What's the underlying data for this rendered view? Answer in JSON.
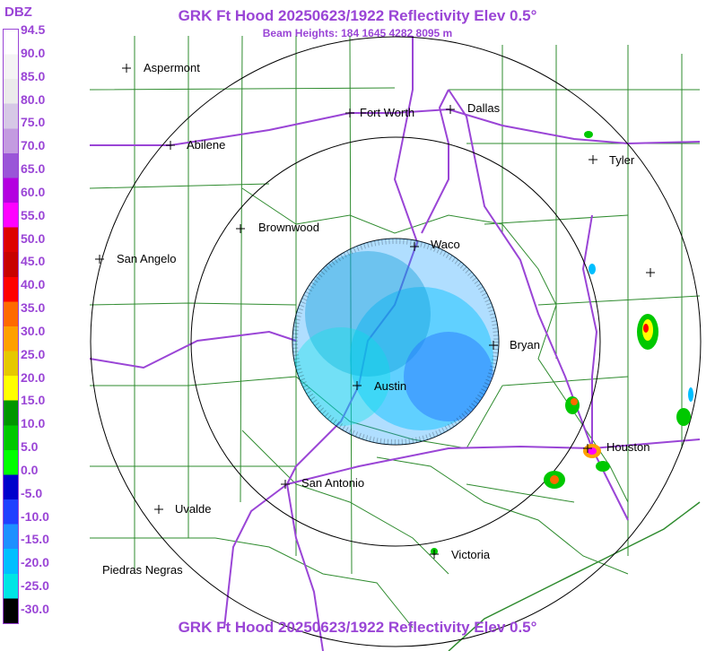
{
  "header": {
    "title": "GRK Ft Hood 20250623/1922 Reflectivity Elev 0.5°",
    "subtitle": "Beam Heights: 184 1645 4282 8095 m",
    "footer_title": "GRK Ft Hood 20250623/1922 Reflectivity Elev 0.5°"
  },
  "legend": {
    "unit": "DBZ",
    "ticks": [
      "94.5",
      "90.0",
      "85.0",
      "80.0",
      "75.0",
      "70.0",
      "65.0",
      "60.0",
      "55.0",
      "50.0",
      "45.0",
      "40.0",
      "35.0",
      "30.0",
      "25.0",
      "20.0",
      "15.0",
      "10.0",
      "5.0",
      "0.0",
      "-5.0",
      "-10.0",
      "-15.0",
      "-20.0",
      "-25.0",
      "-30.0"
    ],
    "colors": [
      "#ffffff",
      "#f4f4f4",
      "#ebebeb",
      "#d6c8e6",
      "#c39be0",
      "#9a55d8",
      "#b400e0",
      "#ff00ff",
      "#dd0000",
      "#c80000",
      "#ff0000",
      "#ff6a00",
      "#ffa000",
      "#e6c800",
      "#ffff00",
      "#009600",
      "#00c800",
      "#00ff00",
      "#0000cc",
      "#2040ff",
      "#1e90ff",
      "#00bfff",
      "#00e5e5",
      "#000000"
    ]
  },
  "map": {
    "radar_site": "GRK Ft Hood",
    "cities": [
      {
        "name": "Aspermont"
      },
      {
        "name": "Fort Worth"
      },
      {
        "name": "Dallas"
      },
      {
        "name": "Abilene"
      },
      {
        "name": "Tyler"
      },
      {
        "name": "Brownwood"
      },
      {
        "name": "Waco"
      },
      {
        "name": "San Angelo"
      },
      {
        "name": "Bryan"
      },
      {
        "name": "Austin"
      },
      {
        "name": "Houston"
      },
      {
        "name": "San Antonio"
      },
      {
        "name": "Uvalde"
      },
      {
        "name": "Victoria"
      },
      {
        "name": "Piedras Negras"
      }
    ]
  }
}
